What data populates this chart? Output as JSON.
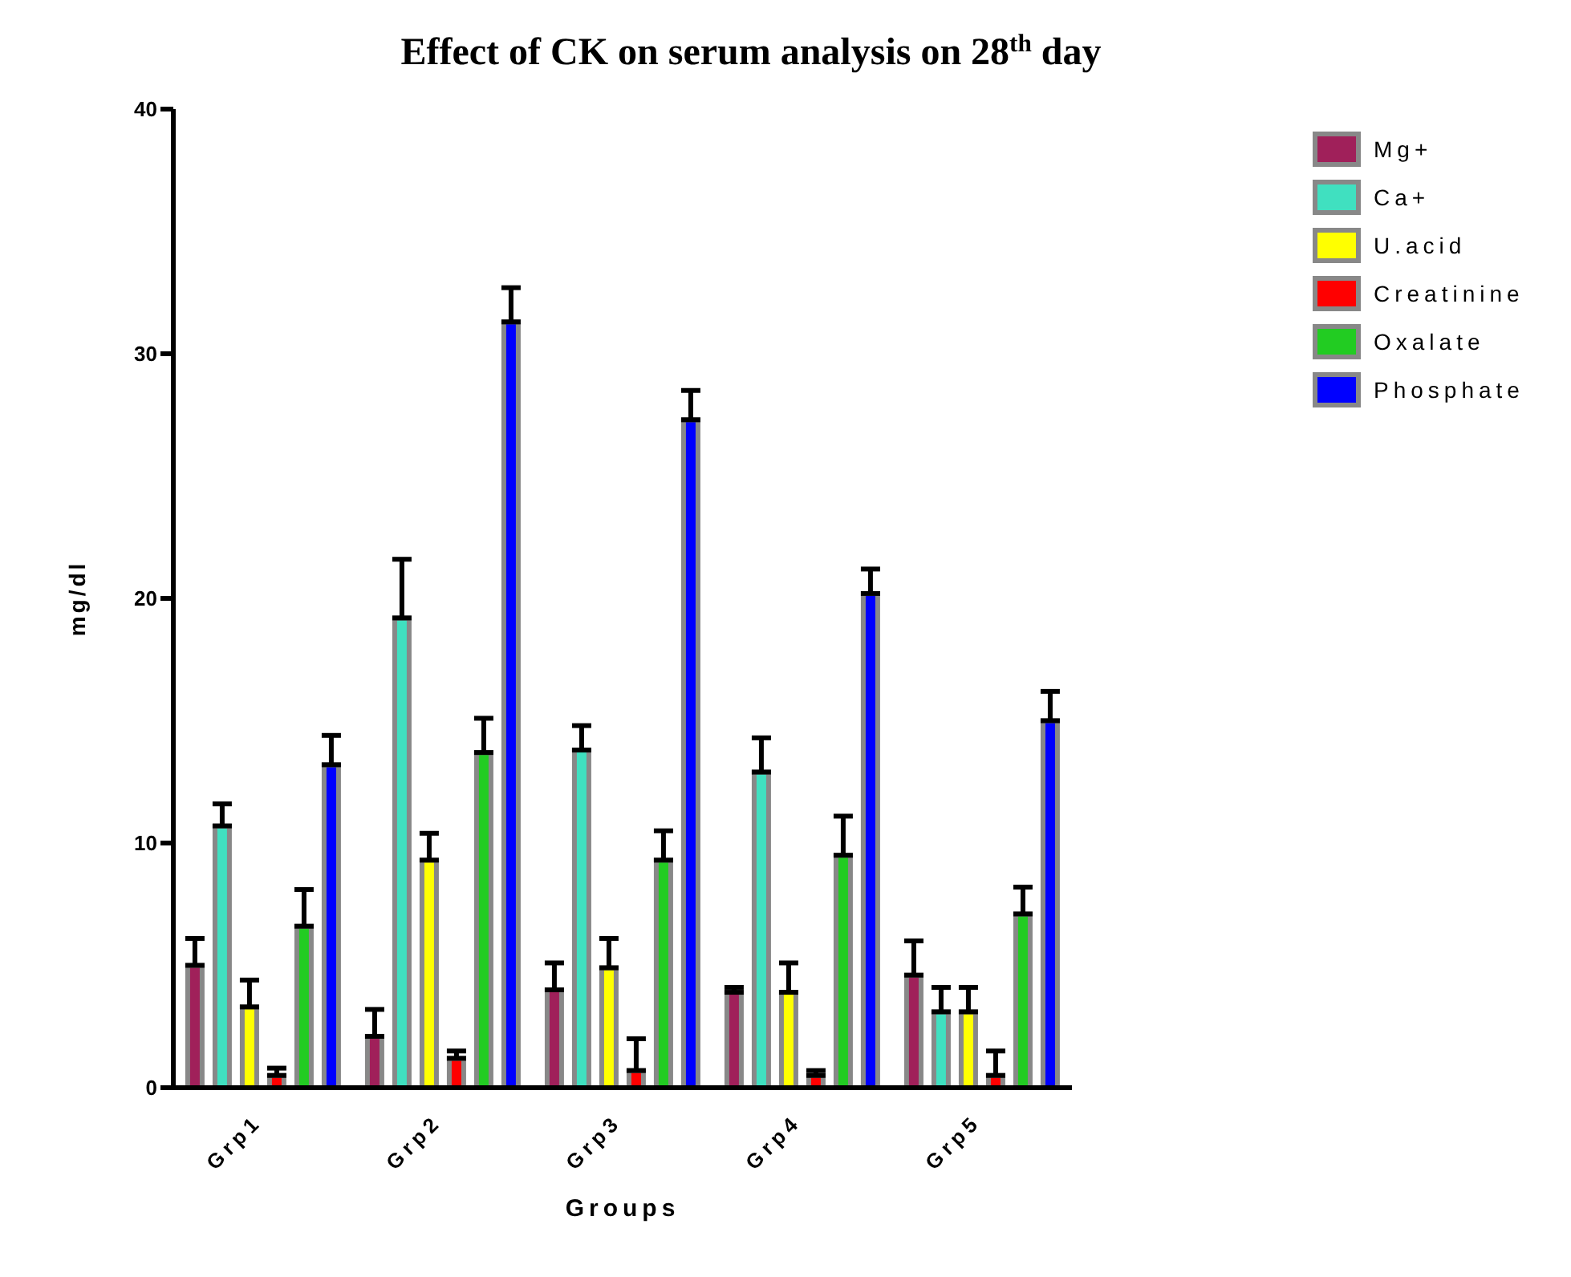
{
  "chart_data": {
    "type": "bar",
    "title": "Effect of CK on serum analysis on 28$^{th}$ day",
    "xlabel": "Groups",
    "ylabel": "mg/dl",
    "categories": [
      "Grp1",
      "Grp2",
      "Grp3",
      "Grp4",
      "Grp5"
    ],
    "series": [
      {
        "name": "Mg+",
        "color": "#a0205a",
        "values": [
          5.0,
          2.1,
          4.0,
          3.9,
          4.6
        ],
        "errors": [
          [
            5.0,
            6.1
          ],
          [
            2.1,
            3.2
          ],
          [
            4.0,
            5.1
          ],
          [
            3.9,
            4.1
          ],
          [
            4.6,
            6.0
          ]
        ]
      },
      {
        "name": "Ca+",
        "color": "#40e0c0",
        "values": [
          10.7,
          19.2,
          13.8,
          12.9,
          3.1
        ],
        "errors": [
          [
            10.7,
            11.6
          ],
          [
            19.2,
            21.6
          ],
          [
            13.8,
            14.8
          ],
          [
            12.9,
            14.3
          ],
          [
            3.1,
            4.1
          ]
        ]
      },
      {
        "name": "U.acid",
        "color": "#ffff00",
        "values": [
          3.3,
          9.3,
          4.9,
          3.9,
          3.1
        ],
        "errors": [
          [
            3.3,
            4.4
          ],
          [
            9.3,
            10.4
          ],
          [
            4.9,
            6.1
          ],
          [
            3.9,
            5.1
          ],
          [
            3.1,
            4.1
          ]
        ]
      },
      {
        "name": "Creatinine",
        "color": "#ff0000",
        "values": [
          0.5,
          1.2,
          0.7,
          0.5,
          0.5
        ],
        "errors": [
          [
            0.5,
            0.8
          ],
          [
            1.2,
            1.5
          ],
          [
            0.7,
            2.0
          ],
          [
            0.5,
            0.7
          ],
          [
            0.5,
            1.5
          ]
        ]
      },
      {
        "name": "Oxalate",
        "color": "#22cc22",
        "values": [
          6.6,
          13.7,
          9.3,
          9.5,
          7.1
        ],
        "errors": [
          [
            6.6,
            8.1
          ],
          [
            13.7,
            15.1
          ],
          [
            9.3,
            10.5
          ],
          [
            9.5,
            11.1
          ],
          [
            7.1,
            8.2
          ]
        ]
      },
      {
        "name": "Phosphate",
        "color": "#0000ff",
        "values": [
          13.2,
          31.3,
          27.3,
          20.2,
          15.0
        ],
        "errors": [
          [
            13.2,
            14.4
          ],
          [
            31.3,
            32.7
          ],
          [
            27.3,
            28.5
          ],
          [
            20.2,
            21.2
          ],
          [
            15.0,
            16.2
          ]
        ]
      }
    ],
    "ylim": [
      0,
      40
    ],
    "yticks": [
      0,
      10,
      20,
      30,
      40
    ],
    "grid": false,
    "legend": "top right"
  }
}
